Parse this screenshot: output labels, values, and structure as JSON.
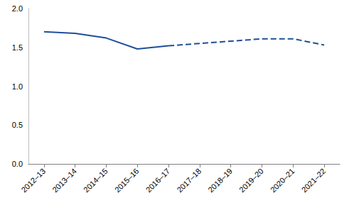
{
  "chart_data": {
    "type": "line",
    "categories": [
      "2012–13",
      "2013–14",
      "2014–15",
      "2015–16",
      "2016–17",
      "2017–18",
      "2018–19",
      "2019–20",
      "2020–21",
      "2021–22"
    ],
    "series": [
      {
        "color": "#1f4e9a",
        "line_style": "solid",
        "values": [
          1.7,
          1.68,
          1.62,
          1.48,
          1.52,
          null,
          null,
          null,
          null,
          null
        ]
      },
      {
        "color": "#1f4e9a",
        "line_style": "dashed",
        "values": [
          null,
          null,
          null,
          null,
          1.52,
          1.55,
          1.58,
          1.61,
          1.61,
          1.53
        ]
      }
    ],
    "ylim": [
      0,
      2
    ],
    "yticks": [
      {
        "value": 0,
        "label": "0.0"
      },
      0.5,
      {
        "value": 1,
        "label": "1.0"
      },
      1.5,
      {
        "value": 2,
        "label": "2.0"
      }
    ],
    "grid": false
  }
}
